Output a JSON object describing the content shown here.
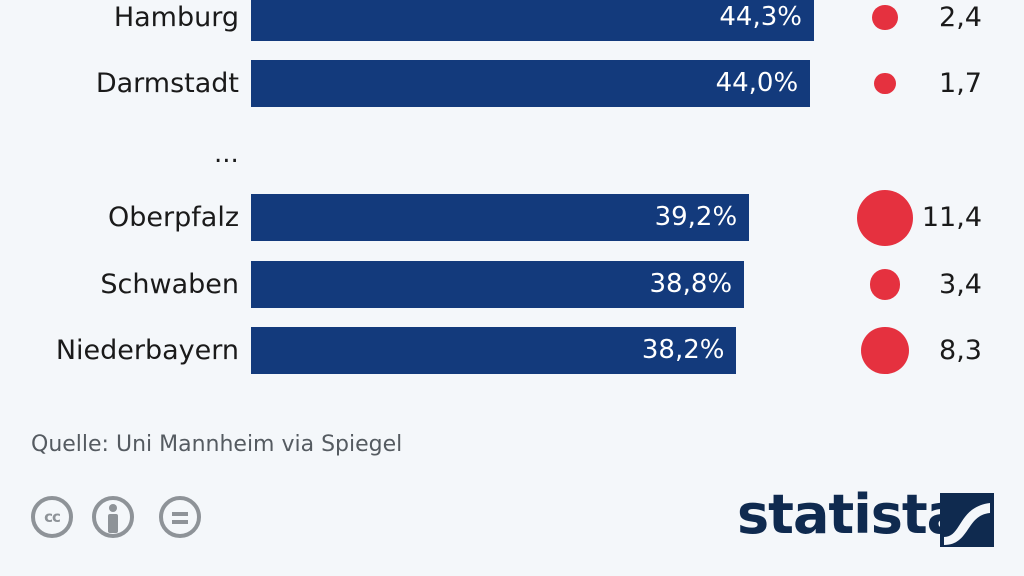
{
  "chart_data": {
    "type": "bar",
    "categories": [
      "Hamburg",
      "Darmstadt",
      "Oberpfalz",
      "Schwaben",
      "Niederbayern"
    ],
    "values": [
      44.3,
      44.0,
      39.2,
      38.8,
      38.2
    ],
    "value_labels": [
      "44,3%",
      "44,0%",
      "39,2%",
      "38,8%",
      "38,2%"
    ],
    "secondary_values": [
      2.4,
      1.7,
      11.4,
      3.4,
      8.3
    ],
    "secondary_labels": [
      "2,4",
      "1,7",
      "11,4",
      "3,4",
      "8,3"
    ],
    "gap_marker": "...",
    "bar_color": "#133a7c",
    "dot_color": "#e5313f"
  },
  "footer": {
    "source": "Quelle: Uni Mannheim via Spiegel",
    "license_icons": [
      "creative-commons-icon",
      "attribution-icon",
      "no-derivatives-icon"
    ],
    "cc_label": "cc",
    "logo_text": "statista"
  }
}
